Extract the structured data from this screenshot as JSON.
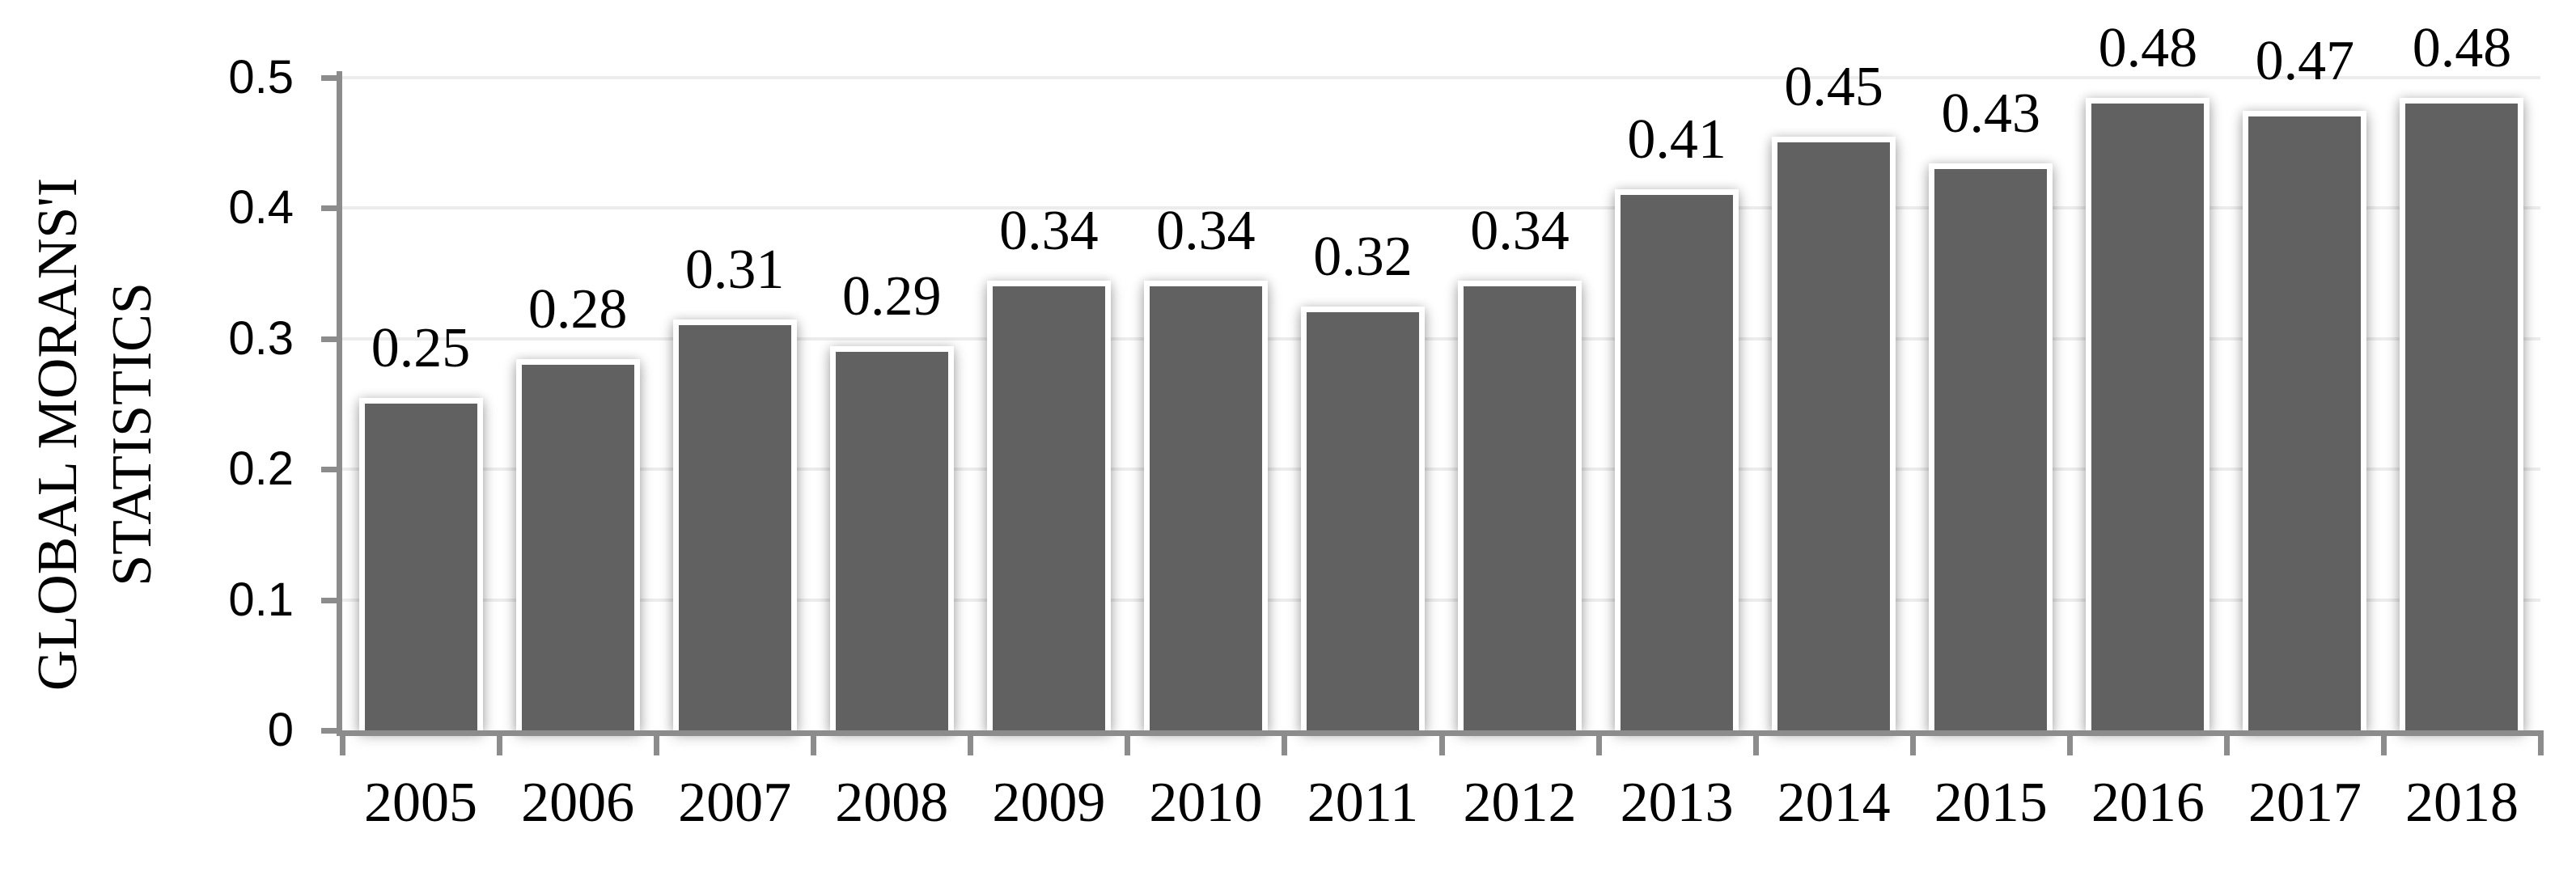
{
  "chart_data": {
    "type": "bar",
    "title": "",
    "xlabel": "",
    "ylabel": "GLOBAL MORANS'I STATISTICS",
    "ylabel_line1": "GLOBAL MORANS'I",
    "ylabel_line2": "STATISTICS",
    "categories": [
      "2005",
      "2006",
      "2007",
      "2008",
      "2009",
      "2010",
      "2011",
      "2012",
      "2013",
      "2014",
      "2015",
      "2016",
      "2017",
      "2018"
    ],
    "values": [
      0.25,
      0.28,
      0.31,
      0.29,
      0.34,
      0.34,
      0.32,
      0.34,
      0.41,
      0.45,
      0.43,
      0.48,
      0.47,
      0.48
    ],
    "value_labels": [
      "0.25",
      "0.28",
      "0.31",
      "0.29",
      "0.34",
      "0.34",
      "0.32",
      "0.34",
      "0.41",
      "0.45",
      "0.43",
      "0.48",
      "0.47",
      "0.48"
    ],
    "ylim": [
      0,
      0.5
    ],
    "yticks": [
      {
        "value": 0.0,
        "label": "0"
      },
      {
        "value": 0.1,
        "label": "0.1"
      },
      {
        "value": 0.2,
        "label": "0.2"
      },
      {
        "value": 0.3,
        "label": "0.3"
      },
      {
        "value": 0.4,
        "label": "0.4"
      },
      {
        "value": 0.5,
        "label": "0.5"
      }
    ],
    "grid": true,
    "legend_position": "none",
    "bar_color": "#616161",
    "bar_border_color": "#ffffff",
    "axis_color": "#8c8c8c",
    "gridline_color": "#ececec",
    "text_color": "#000000"
  }
}
